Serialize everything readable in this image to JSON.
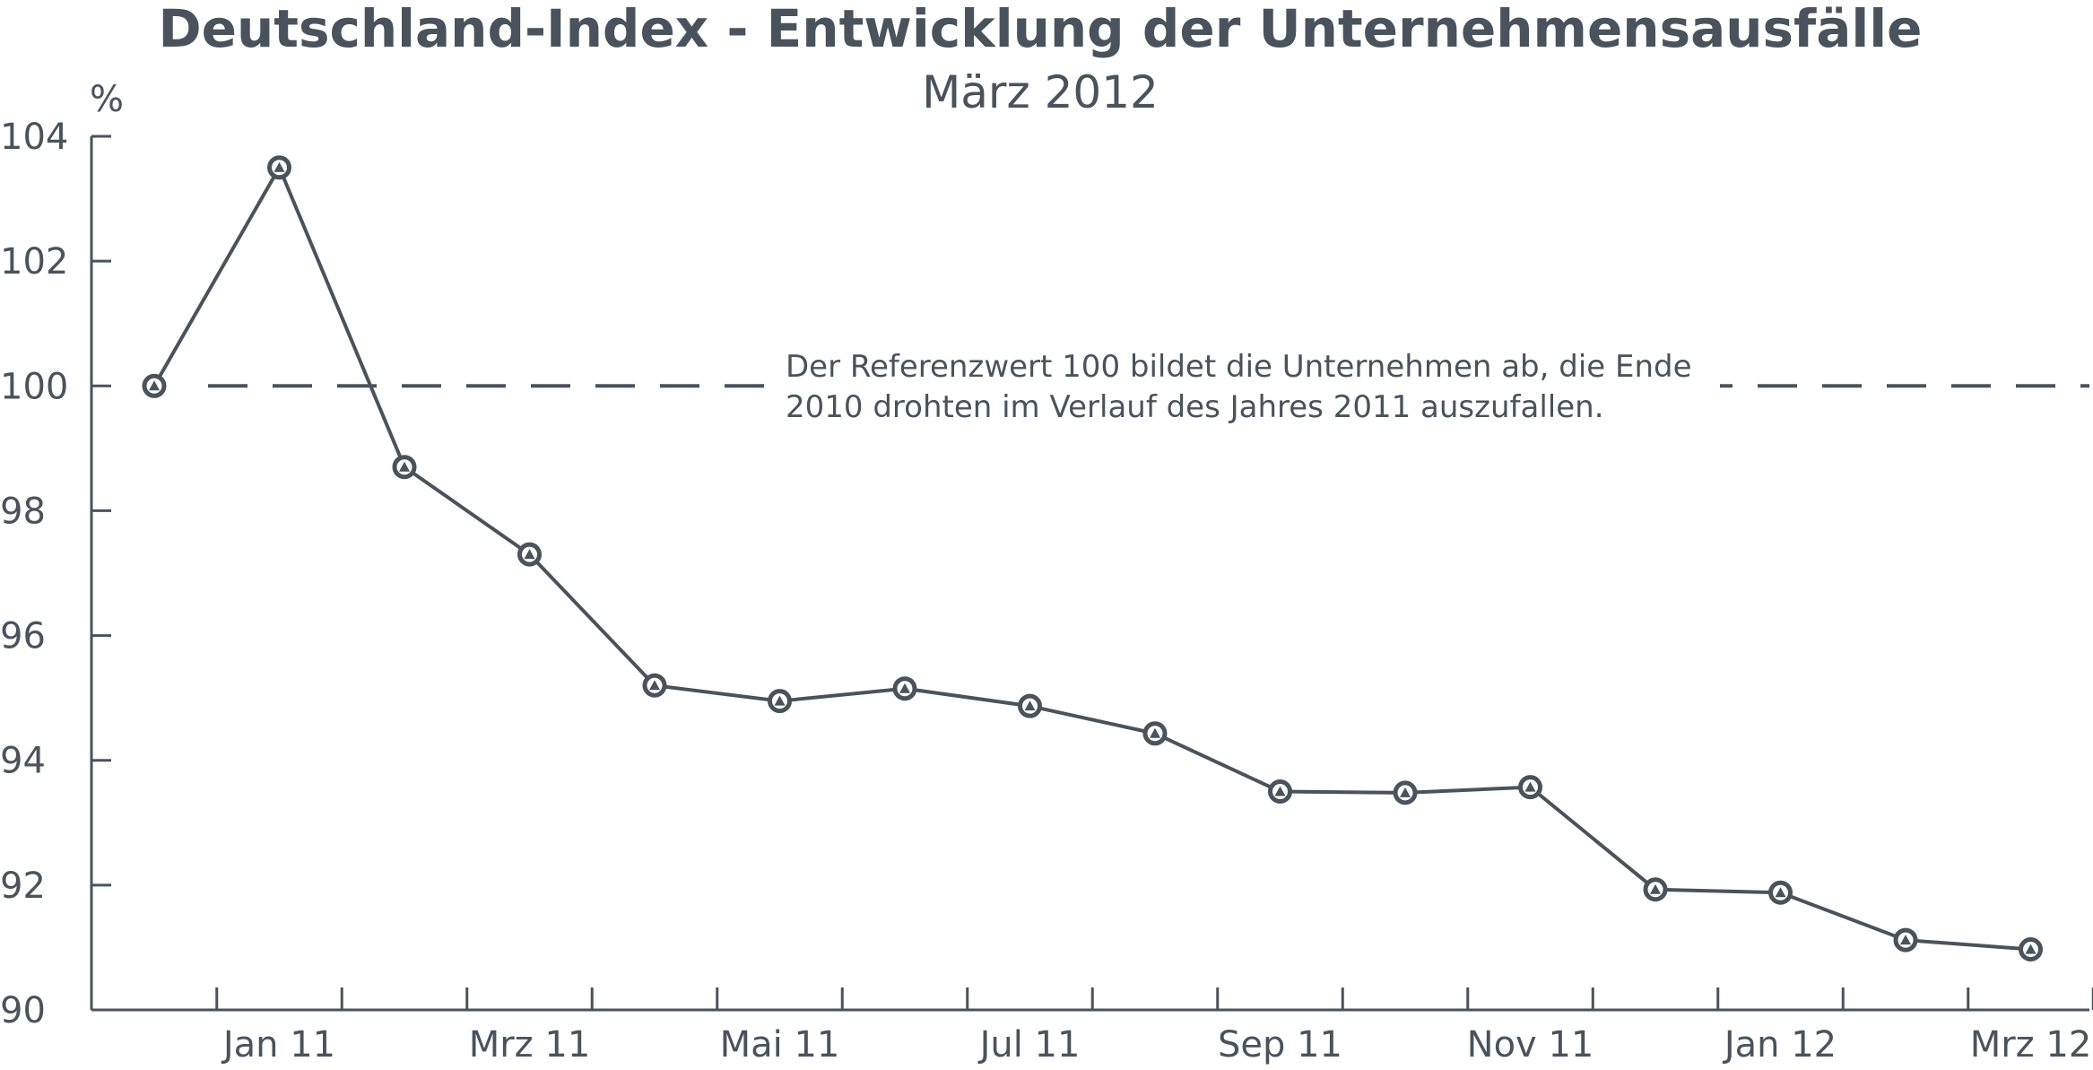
{
  "chart_data": {
    "type": "line",
    "title": "Deutschland-Index - Entwicklung der Unternehmensausfälle",
    "subtitle": "März 2012",
    "ylabel": "%",
    "xlabel": "",
    "ylim": [
      90,
      104
    ],
    "yticks": [
      90,
      92,
      94,
      96,
      98,
      100,
      102,
      104
    ],
    "x_labels": [
      "Jan 11",
      "Mrz 11",
      "Mai 11",
      "Jul 11",
      "Sep 11",
      "Nov 11",
      "Jan 12",
      "Mrz 12"
    ],
    "x": [
      "Dez 10",
      "Jan 11",
      "Feb 11",
      "Mrz 11",
      "Apr 11",
      "Mai 11",
      "Jun 11",
      "Jul 11",
      "Aug 11",
      "Sep 11",
      "Okt 11",
      "Nov 11",
      "Dez 11",
      "Jan 12",
      "Feb 12",
      "Mrz 12"
    ],
    "series": [
      {
        "values": [
          100.0,
          103.5,
          98.7,
          97.3,
          95.2,
          94.95,
          95.15,
          94.87,
          94.43,
          93.5,
          93.48,
          93.57,
          91.93,
          91.88,
          91.12,
          90.97
        ]
      }
    ],
    "reference_line": {
      "value": 100,
      "style": "dashed"
    },
    "annotation": {
      "lines": [
        "Der Referenzwert 100 bildet die Unternehmen ab, die Ende",
        "2010 drohten im Verlauf des Jahres 2011 auszufallen."
      ]
    },
    "grid": false,
    "legend": "none",
    "colors": {
      "line": "#4a535b",
      "text": "#4a535b",
      "background": "#ffffff"
    }
  }
}
